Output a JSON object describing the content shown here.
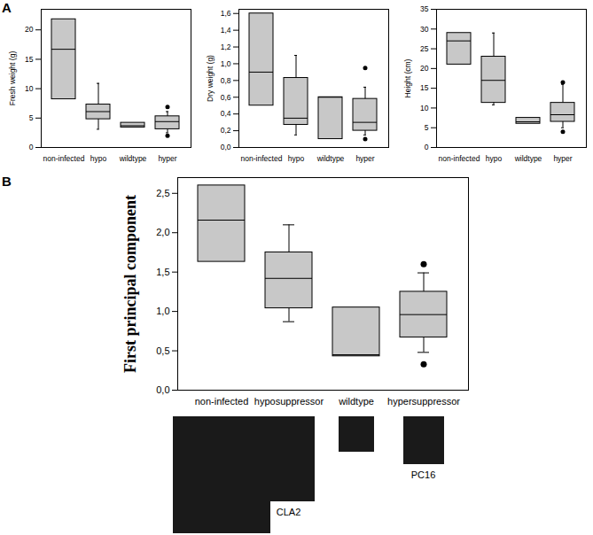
{
  "chart_data": [
    {
      "type": "box",
      "annotations": [
        "A"
      ],
      "y_label": "Fresh weight (g)",
      "color": "#c8c8c8",
      "categories": [
        "non-infected",
        "hypo",
        "wildtype",
        "hyper"
      ],
      "ylim": [
        0,
        23.5
      ],
      "yticks": [
        0,
        5,
        10,
        15,
        20
      ],
      "boxes": [
        {
          "q1": 8.2,
          "median": 16.7,
          "q3": 21.8,
          "whisker_low": null,
          "whisker_high": null,
          "outliers": []
        },
        {
          "q1": 4.8,
          "median": 6.1,
          "q3": 7.3,
          "whisker_low": 3.1,
          "whisker_high": 10.9,
          "outliers": []
        },
        {
          "q1": 3.4,
          "median": 3.7,
          "q3": 4.2,
          "whisker_low": null,
          "whisker_high": null,
          "outliers": []
        },
        {
          "q1": 3.1,
          "median": 4.4,
          "q3": 5.3,
          "whisker_low": 2.5,
          "whisker_high": 6.1,
          "outliers": [
            2.0,
            6.9
          ]
        }
      ]
    },
    {
      "type": "box",
      "y_label": "Dry weight (g)",
      "color": "#c8c8c8",
      "categories": [
        "non-infected",
        "hypo",
        "wildtype",
        "hyper"
      ],
      "ylim": [
        0,
        1.65
      ],
      "yticks": [
        {
          "value": 0,
          "label": "0,0"
        },
        {
          "value": 0.2,
          "label": "0,2"
        },
        {
          "value": 0.4,
          "label": "0,4"
        },
        {
          "value": 0.6,
          "label": "0,6"
        },
        {
          "value": 0.8,
          "label": "0,8"
        },
        {
          "value": 1.0,
          "label": "1,0"
        },
        {
          "value": 1.2,
          "label": "1,2"
        },
        {
          "value": 1.4,
          "label": "1,4"
        },
        {
          "value": 1.6,
          "label": "1,6"
        }
      ],
      "boxes": [
        {
          "q1": 0.5,
          "median": 0.9,
          "q3": 1.6,
          "whisker_low": null,
          "whisker_high": null,
          "outliers": []
        },
        {
          "q1": 0.27,
          "median": 0.35,
          "q3": 0.83,
          "whisker_low": 0.15,
          "whisker_high": 1.1,
          "outliers": []
        },
        {
          "q1": 0.1,
          "median": 0.6,
          "q3": 0.6,
          "whisker_low": null,
          "whisker_high": null,
          "outliers": []
        },
        {
          "q1": 0.2,
          "median": 0.3,
          "q3": 0.58,
          "whisker_low": 0.15,
          "whisker_high": 0.72,
          "outliers": [
            0.1,
            0.95
          ]
        }
      ]
    },
    {
      "type": "box",
      "y_label": "Height (cm)",
      "color": "#c8c8c8",
      "categories": [
        "non-infected",
        "hypo",
        "wildtype",
        "hyper"
      ],
      "ylim": [
        0,
        35
      ],
      "yticks": [
        0,
        5,
        10,
        15,
        20,
        25,
        30,
        35
      ],
      "boxes": [
        {
          "q1": 21,
          "median": 27,
          "q3": 29,
          "whisker_low": null,
          "whisker_high": null,
          "outliers": []
        },
        {
          "q1": 11.3,
          "median": 17,
          "q3": 23,
          "whisker_low": 10.8,
          "whisker_high": 29,
          "outliers": []
        },
        {
          "q1": 6,
          "median": 6.5,
          "q3": 7.5,
          "whisker_low": null,
          "whisker_high": null,
          "outliers": []
        },
        {
          "q1": 6.5,
          "median": 8.3,
          "q3": 11.3,
          "whisker_low": 5,
          "whisker_high": 16,
          "outliers": [
            4,
            16.5
          ]
        }
      ]
    },
    {
      "type": "box",
      "annotations": [
        "B"
      ],
      "y_label": "First principal component",
      "color": "#c8c8c8",
      "categories": [
        "non-infected",
        "hyposuppressor",
        "wildtype",
        "hypersuppressor"
      ],
      "image_captions": [
        null,
        "CLA2",
        null,
        "PC16"
      ],
      "ylim": [
        0,
        2.7
      ],
      "yticks": [
        {
          "value": 0,
          "label": "0,0"
        },
        {
          "value": 0.5,
          "label": "0,5"
        },
        {
          "value": 1.0,
          "label": "1,0"
        },
        {
          "value": 1.5,
          "label": "1,5"
        },
        {
          "value": 2.0,
          "label": "2,0"
        },
        {
          "value": 2.5,
          "label": "2,5"
        }
      ],
      "boxes": [
        {
          "q1": 1.63,
          "median": 2.16,
          "q3": 2.6,
          "whisker_low": null,
          "whisker_high": null,
          "outliers": []
        },
        {
          "q1": 1.04,
          "median": 1.42,
          "q3": 1.75,
          "whisker_low": 0.87,
          "whisker_high": 2.1,
          "outliers": []
        },
        {
          "q1": 0.43,
          "median": 0.45,
          "q3": 1.05,
          "whisker_low": null,
          "whisker_high": null,
          "outliers": []
        },
        {
          "q1": 0.67,
          "median": 0.96,
          "q3": 1.25,
          "whisker_low": 0.48,
          "whisker_high": 1.49,
          "outliers": [
            0.33,
            1.6
          ]
        }
      ]
    }
  ]
}
